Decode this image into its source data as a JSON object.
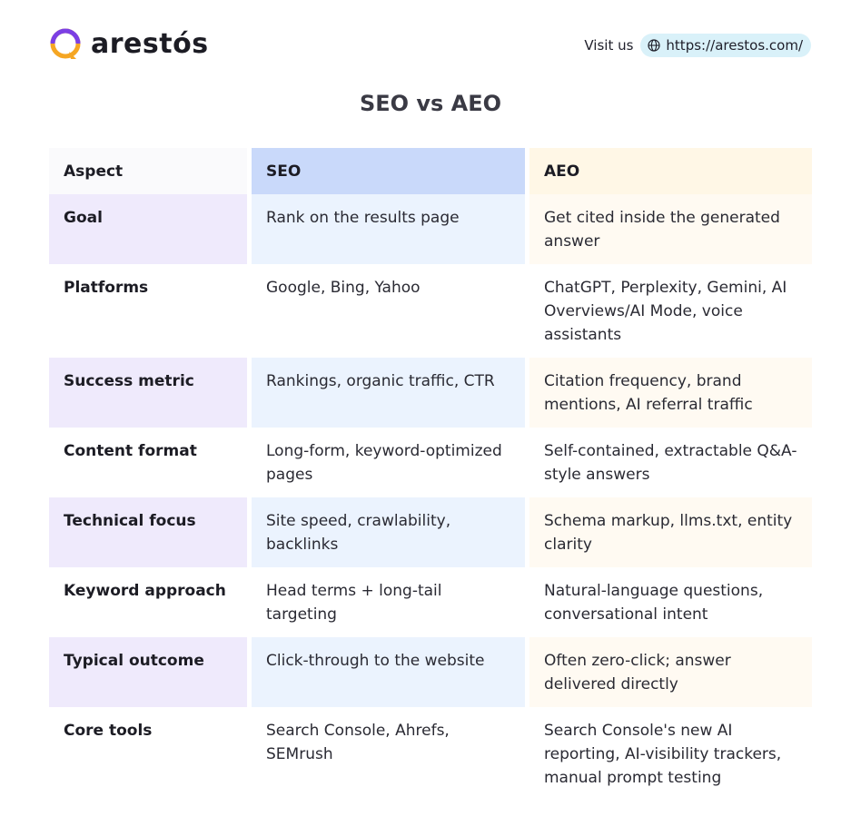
{
  "brand": {
    "name": "arestós",
    "accent_purple": "#7b3fe4",
    "accent_orange": "#f5a623"
  },
  "visit": {
    "label": "Visit us",
    "url": "https://arestos.com/",
    "icon": "globe-icon"
  },
  "title": "SEO vs AEO",
  "table": {
    "headers": [
      "Aspect",
      "SEO",
      "AEO"
    ],
    "rows": [
      {
        "aspect": "Goal",
        "seo": "Rank on the results page",
        "aeo": "Get cited inside the generated answer"
      },
      {
        "aspect": "Platforms",
        "seo": "Google, Bing, Yahoo",
        "aeo": "ChatGPT, Perplexity, Gemini, AI Overviews/AI Mode, voice assistants"
      },
      {
        "aspect": "Success metric",
        "seo": "Rankings, organic traffic, CTR",
        "aeo": "Citation frequency, brand mentions, AI referral traffic"
      },
      {
        "aspect": "Content format",
        "seo": "Long-form, keyword-optimized pages",
        "aeo": "Self-contained, extractable Q&A-style answers"
      },
      {
        "aspect": "Technical focus",
        "seo": "Site speed, crawlability, backlinks",
        "aeo": "Schema markup, llms.txt, entity clarity"
      },
      {
        "aspect": "Keyword approach",
        "seo": "Head terms + long-tail targeting",
        "aeo": "Natural-language questions, conversational intent"
      },
      {
        "aspect": "Typical outcome",
        "seo": "Click-through to the website",
        "aeo": "Often zero-click; answer delivered directly"
      },
      {
        "aspect": "Core tools",
        "seo": "Search Console, Ahrefs, SEMrush",
        "aeo": "Search Console's new AI reporting, AI-visibility trackers, manual prompt testing"
      }
    ]
  }
}
